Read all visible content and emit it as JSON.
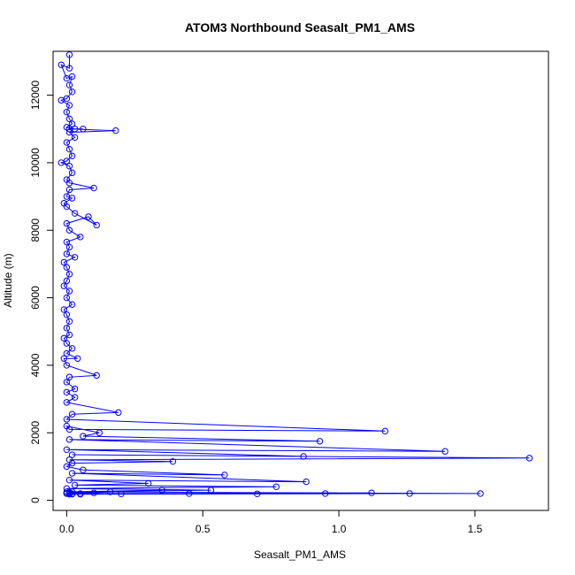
{
  "chart_data": {
    "type": "line",
    "title": "ATOM3 Northbound Seasalt_PM1_AMS",
    "xlabel": "Seasalt_PM1_AMS",
    "ylabel": "Altitude (m)",
    "xlim": [
      -0.05,
      1.77
    ],
    "ylim": [
      -300,
      13300
    ],
    "xticks": [
      0,
      0.5,
      1.0,
      1.5
    ],
    "xtick_labels": [
      "0.0",
      "0.5",
      "1.0",
      "1.5"
    ],
    "yticks": [
      0,
      2000,
      4000,
      6000,
      8000,
      10000,
      12000
    ],
    "ytick_labels": [
      "0",
      "2000",
      "4000",
      "6000",
      "8000",
      "10000",
      "12000"
    ],
    "grid": false,
    "legend": "none",
    "marker": "open-circle",
    "line_color": "#0000ff",
    "series": [
      {
        "points": [
          [
            0.01,
            13200
          ],
          [
            0.01,
            12800
          ],
          [
            -0.02,
            12900
          ],
          [
            0.0,
            12500
          ],
          [
            0.02,
            12550
          ],
          [
            0.01,
            12300
          ],
          [
            0.02,
            12100
          ],
          [
            0.0,
            11900
          ],
          [
            -0.02,
            11850
          ],
          [
            0.01,
            11700
          ],
          [
            0.0,
            11500
          ],
          [
            0.01,
            11300
          ],
          [
            0.02,
            11150
          ],
          [
            0.0,
            11050
          ],
          [
            0.03,
            11000
          ],
          [
            0.06,
            11000
          ],
          [
            0.01,
            11000
          ],
          [
            0.18,
            10950
          ],
          [
            0.01,
            10900
          ],
          [
            0.03,
            10750
          ],
          [
            0.0,
            10600
          ],
          [
            0.01,
            10400
          ],
          [
            0.02,
            10200
          ],
          [
            0.0,
            10050
          ],
          [
            -0.02,
            10000
          ],
          [
            0.01,
            9900
          ],
          [
            0.02,
            9700
          ],
          [
            0.0,
            9500
          ],
          [
            0.01,
            9400
          ],
          [
            0.1,
            9250
          ],
          [
            0.01,
            9200
          ],
          [
            0.0,
            9000
          ],
          [
            0.02,
            8950
          ],
          [
            -0.01,
            8800
          ],
          [
            0.0,
            8700
          ],
          [
            0.03,
            8500
          ],
          [
            0.11,
            8150
          ],
          [
            0.08,
            8400
          ],
          [
            0.0,
            8200
          ],
          [
            0.01,
            8000
          ],
          [
            0.05,
            7800
          ],
          [
            0.0,
            7650
          ],
          [
            0.01,
            7500
          ],
          [
            0.0,
            7300
          ],
          [
            0.03,
            7200
          ],
          [
            -0.01,
            7050
          ],
          [
            0.0,
            6900
          ],
          [
            0.01,
            6700
          ],
          [
            0.0,
            6500
          ],
          [
            -0.01,
            6350
          ],
          [
            0.01,
            6200
          ],
          [
            0.0,
            6000
          ],
          [
            0.02,
            5800
          ],
          [
            -0.01,
            5650
          ],
          [
            0.0,
            5500
          ],
          [
            0.01,
            5300
          ],
          [
            0.0,
            5100
          ],
          [
            0.01,
            4900
          ],
          [
            -0.01,
            4800
          ],
          [
            0.0,
            4650
          ],
          [
            0.02,
            4500
          ],
          [
            0.0,
            4350
          ],
          [
            0.04,
            4200
          ],
          [
            -0.01,
            4200
          ],
          [
            0.0,
            4000
          ],
          [
            0.11,
            3700
          ],
          [
            0.01,
            3650
          ],
          [
            0.0,
            3500
          ],
          [
            0.03,
            3300
          ],
          [
            0.0,
            3200
          ],
          [
            0.03,
            3050
          ],
          [
            0.0,
            2900
          ],
          [
            0.19,
            2600
          ],
          [
            0.02,
            2550
          ],
          [
            0.0,
            2400
          ],
          [
            1.17,
            2050
          ],
          [
            0.01,
            2100
          ],
          [
            0.0,
            2200
          ],
          [
            0.12,
            2000
          ],
          [
            0.06,
            1900
          ],
          [
            0.93,
            1750
          ],
          [
            0.01,
            1800
          ],
          [
            1.39,
            1450
          ],
          [
            0.0,
            1500
          ],
          [
            0.87,
            1300
          ],
          [
            0.02,
            1350
          ],
          [
            1.7,
            1250
          ],
          [
            0.01,
            1200
          ],
          [
            0.39,
            1150
          ],
          [
            0.02,
            1100
          ],
          [
            0.0,
            1000
          ],
          [
            0.06,
            900
          ],
          [
            0.58,
            750
          ],
          [
            0.02,
            800
          ],
          [
            0.88,
            550
          ],
          [
            0.01,
            600
          ],
          [
            0.3,
            500
          ],
          [
            0.03,
            450
          ],
          [
            0.77,
            400
          ],
          [
            0.0,
            350
          ],
          [
            0.53,
            300
          ],
          [
            0.02,
            250
          ],
          [
            1.52,
            200
          ],
          [
            0.0,
            200
          ],
          [
            1.26,
            200
          ],
          [
            0.05,
            180
          ],
          [
            1.12,
            220
          ],
          [
            0.02,
            190
          ],
          [
            0.95,
            200
          ],
          [
            0.01,
            180
          ],
          [
            0.7,
            190
          ],
          [
            0.0,
            200
          ],
          [
            0.45,
            200
          ],
          [
            0.02,
            180
          ],
          [
            0.2,
            190
          ],
          [
            0.01,
            200
          ],
          [
            0.35,
            300
          ],
          [
            0.0,
            250
          ],
          [
            0.16,
            250
          ],
          [
            0.01,
            230
          ],
          [
            0.1,
            220
          ],
          [
            0.0,
            210
          ],
          [
            0.05,
            200
          ],
          [
            0.02,
            190
          ]
        ]
      }
    ]
  }
}
